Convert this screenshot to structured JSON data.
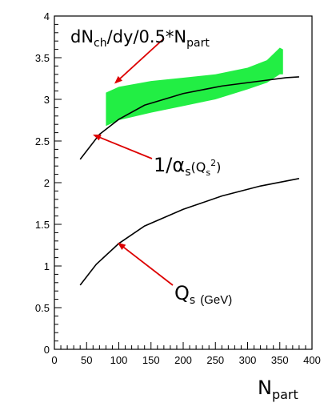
{
  "chart_data": {
    "type": "line",
    "xlim": [
      0,
      400
    ],
    "ylim": [
      0,
      4
    ],
    "x_ticks": [
      "0",
      "50",
      "100",
      "150",
      "200",
      "250",
      "300",
      "350",
      "400"
    ],
    "y_ticks": [
      "0",
      "0.5",
      "1",
      "1.5",
      "2",
      "2.5",
      "3",
      "3.5",
      "4"
    ],
    "grid": false,
    "series": [
      {
        "points": [
          [
            40,
            2.28
          ],
          [
            70,
            2.58
          ],
          [
            100,
            2.76
          ],
          [
            140,
            2.93
          ],
          [
            200,
            3.07
          ],
          [
            260,
            3.16
          ],
          [
            320,
            3.22
          ],
          [
            360,
            3.26
          ],
          [
            380,
            3.27
          ]
        ]
      },
      {
        "points": [
          [
            40,
            0.77
          ],
          [
            65,
            1.02
          ],
          [
            100,
            1.27
          ],
          [
            140,
            1.48
          ],
          [
            200,
            1.68
          ],
          [
            260,
            1.84
          ],
          [
            320,
            1.96
          ],
          [
            380,
            2.05
          ]
        ]
      }
    ],
    "band": {
      "color": "#22ee44",
      "upper": [
        [
          80,
          3.08
        ],
        [
          100,
          3.15
        ],
        [
          150,
          3.22
        ],
        [
          200,
          3.26
        ],
        [
          250,
          3.3
        ],
        [
          300,
          3.38
        ],
        [
          330,
          3.47
        ],
        [
          350,
          3.62
        ],
        [
          355,
          3.6
        ]
      ],
      "lower": [
        [
          80,
          2.68
        ],
        [
          100,
          2.75
        ],
        [
          150,
          2.84
        ],
        [
          200,
          2.92
        ],
        [
          250,
          3.0
        ],
        [
          300,
          3.12
        ],
        [
          330,
          3.2
        ],
        [
          350,
          3.3
        ],
        [
          355,
          3.3
        ]
      ]
    },
    "annotations": [
      {
        "text_main": "dN",
        "sub1": "ch",
        "text_mid": "/dy/0.5*N",
        "sub2": "part",
        "arrow_to": [
          95,
          3.2
        ],
        "color": "#dd0000"
      },
      {
        "text_main": "1/α",
        "sub1": "s",
        "paren": "(Q",
        "sub2": "s",
        "sup": "2",
        "close": ")",
        "arrow_to": [
          62,
          2.57
        ],
        "color": "#dd0000"
      },
      {
        "text_main": "Q",
        "sub1": "s",
        "unit": "(GeV)",
        "arrow_to": [
          100,
          1.27
        ],
        "color": "#dd0000"
      }
    ],
    "xlabel_main": "N",
    "xlabel_sub": "part"
  }
}
